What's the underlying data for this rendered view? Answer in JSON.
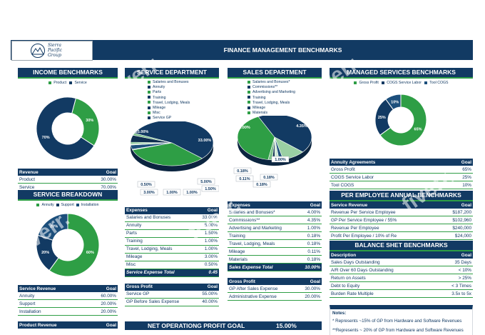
{
  "header": {
    "logo_line1": "Sierra",
    "logo_line2": "Pacific",
    "logo_line3": "Group",
    "title": "FINANCE MANAGEMENT BENCHMARKS"
  },
  "income": {
    "title": "INCOME BENCHMARKS",
    "legend": [
      "Product",
      "Service"
    ],
    "slices": [
      {
        "label": "30%",
        "value": 30,
        "color": "#2e9e45"
      },
      {
        "label": "70%",
        "value": 70,
        "color": "#123a63"
      }
    ],
    "table_headers": [
      "Revenue",
      "Goal"
    ],
    "rows": [
      [
        "Product",
        "30.00%"
      ],
      [
        "Service",
        "70.00%"
      ]
    ]
  },
  "service_breakdown": {
    "title": "SERVICE BREAKDOWN",
    "legend": [
      "Annuity",
      "Support",
      "Installation"
    ],
    "slices": [
      {
        "label": "60%",
        "value": 60,
        "color": "#2e9e45"
      },
      {
        "label": "20%",
        "value": 20,
        "color": "#123a63"
      },
      {
        "label": "20%",
        "value": 20,
        "color": "#1c4f7c"
      }
    ],
    "table_headers": [
      "Service Revenue",
      "Goal"
    ],
    "rows": [
      [
        "Annuity",
        "60.00%"
      ],
      [
        "Support",
        "20.00%"
      ],
      [
        "Installation",
        "20.00%"
      ]
    ],
    "footer_headers": [
      "Product Revenue",
      "Goal"
    ]
  },
  "service_dept": {
    "title": "SERVICE DEPARTMENT",
    "legend": [
      "Salaries and Bonuses",
      "Annuity",
      "Parts",
      "Training",
      "Travel, Lodging, Meals",
      "Mileage",
      "Misc",
      "Service GP"
    ],
    "pie_labels": [
      "55.00%",
      "33.00%",
      "0.50%",
      "3.00%",
      "1.00%",
      "1.00%",
      "5.00%",
      "1.50%"
    ],
    "table_headers": [
      "Expenses",
      "Goal"
    ],
    "rows": [
      [
        "Salaries and Bonuses",
        "33.00%"
      ],
      [
        "Annuity",
        "5.00%"
      ],
      [
        "Parts",
        "1.50%"
      ],
      [
        "Training",
        "1.00%"
      ],
      [
        "Travel, Lodging, Meals",
        "1.00%"
      ],
      [
        "Mileage",
        "3.00%"
      ],
      [
        "Misc",
        "0.50%"
      ]
    ],
    "total": [
      "Service Expense Total",
      "0.45"
    ],
    "gp_headers": [
      "Gross Profit",
      "Goal"
    ],
    "gp_rows": [
      [
        "Service GP",
        "55.00%"
      ],
      [
        "GP Before Sales Expense",
        "40.00%"
      ]
    ]
  },
  "sales_dept": {
    "title": "SALES DEPARTMENT",
    "legend": [
      "Salaries and Bonuses*",
      "Commissions**",
      "Advertising and Marketing",
      "Training",
      "Travel, Lodging, Meals",
      "Mileage",
      "Materials"
    ],
    "pie_labels": [
      "4.00%",
      "4.35%",
      "1.00%",
      "0.18%",
      "0.18%",
      "0.11%",
      "0.18%"
    ],
    "table_headers": [
      "Expenses",
      "Goal"
    ],
    "rows": [
      [
        "Salaries and Bonuses*",
        "4.00%"
      ],
      [
        "Commissions**",
        "4.35%"
      ],
      [
        "Advertising and Marketing",
        "1.00%"
      ],
      [
        "Training",
        "0.18%"
      ],
      [
        "Travel, Lodging, Meals",
        "0.18%"
      ],
      [
        "Mileage",
        "0.11%"
      ],
      [
        "Materials",
        "0.18%"
      ]
    ],
    "total": [
      "Sales Expense Total",
      "10.00%"
    ],
    "gp_headers": [
      "Gross Profit",
      "Goal"
    ],
    "gp_rows": [
      [
        "GP After Sales Expense",
        "30.00%"
      ],
      [
        "Administrative Expense",
        "20.00%"
      ]
    ]
  },
  "managed": {
    "title": "MANAGED SERVICES BENCHMARKS",
    "legend": [
      "Gross Profit",
      "COGS Service Labor",
      "Tool COGS"
    ],
    "slices": [
      {
        "label": "65%",
        "value": 65,
        "color": "#2e9e45"
      },
      {
        "label": "25%",
        "value": 25,
        "color": "#123a63"
      },
      {
        "label": "10%",
        "value": 10,
        "color": "#1c4f7c"
      }
    ],
    "table_headers": [
      "Annuity Agreements",
      "Goal"
    ],
    "rows": [
      [
        "Gross Profit",
        "65%"
      ],
      [
        "COGS Service Labor",
        "25%"
      ],
      [
        "Tool COGS",
        "10%"
      ]
    ]
  },
  "per_employee": {
    "title": "PER EMPLOYEE ANNUAL BENCHMARKS",
    "table_headers": [
      "Service Revenue",
      "Goal"
    ],
    "rows": [
      [
        "Revenue Per Service Employee",
        "$187,200"
      ],
      [
        "GP Per Service Employee / 55%",
        "$102,960"
      ],
      [
        "Revenue Per Employee",
        "$240,000"
      ],
      [
        "Profit Per Employee / 10% of Re",
        "$24,000"
      ]
    ]
  },
  "balance": {
    "title": "BALANCE SHET BENCHMARKS",
    "table_headers": [
      "Description",
      "Goal"
    ],
    "rows": [
      [
        "Sales Days Outstanding",
        "35 Days"
      ],
      [
        "A/R Over 60 Days Outstanding",
        "< 10%"
      ],
      [
        "Return on Assets",
        "> 25%"
      ],
      [
        "Debt to Equity",
        "< 3 Times"
      ],
      [
        "Burden Rate Multiple",
        "3.5x to 5x"
      ]
    ]
  },
  "notes": {
    "title": "Notes:",
    "lines": [
      "* Represents ~15% of GP from Hardware and  Software Revenues",
      "**Represents ~ 20% of GP from Hardware and Software Revenues"
    ]
  },
  "net_profit": {
    "label": "NET OPERATIONG PROFIT GOAL",
    "value": "15.00%"
  },
  "watermark": "fiverr."
}
